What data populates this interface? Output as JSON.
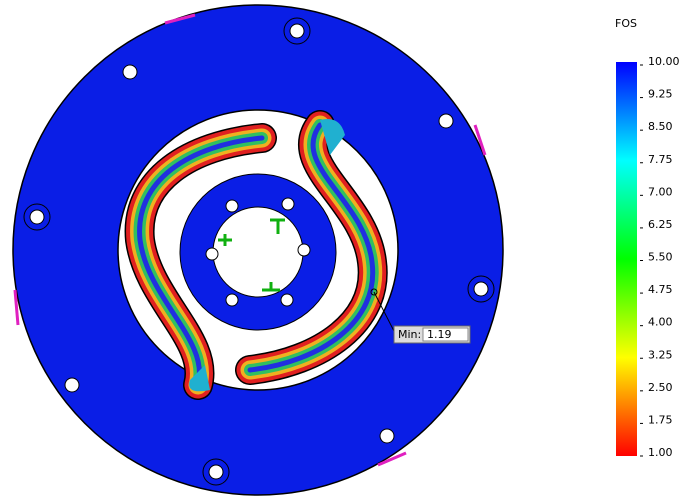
{
  "legend": {
    "title": "FOS",
    "ticks": [
      "10.00",
      "9.25",
      "8.50",
      "7.75",
      "7.00",
      "6.25",
      "5.50",
      "4.75",
      "4.00",
      "3.25",
      "2.50",
      "1.75",
      "1.00"
    ]
  },
  "probe": {
    "label": "Min:",
    "value": "1.19"
  }
}
